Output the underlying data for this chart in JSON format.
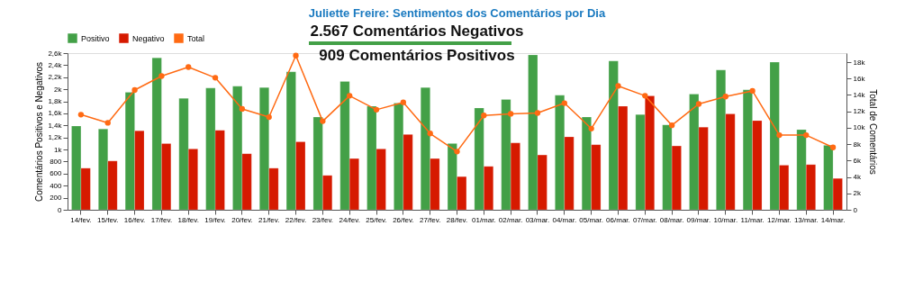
{
  "chart_data": {
    "type": "bar",
    "title": "Juliette Freire: Sentimentos dos Comentários por Dia",
    "ylabel": "Comentários Positivos e Negativos",
    "y2label": "Total de Comentários",
    "categories": [
      "14/fev.",
      "15/fev.",
      "16/fev.",
      "17/fev.",
      "18/fev.",
      "19/fev.",
      "20/fev.",
      "21/fev.",
      "22/fev.",
      "23/fev.",
      "24/fev.",
      "25/fev.",
      "26/fev.",
      "27/fev.",
      "28/fev.",
      "01/mar.",
      "02/mar.",
      "03/mar.",
      "04/mar.",
      "05/mar.",
      "06/mar.",
      "07/mar.",
      "08/mar.",
      "09/mar.",
      "10/mar.",
      "11/mar.",
      "12/mar.",
      "13/mar.",
      "14/mar."
    ],
    "series": [
      {
        "name": "Positivo",
        "color": "#43a047",
        "values": [
          1390,
          1340,
          1950,
          2520,
          1850,
          2020,
          2050,
          2030,
          2290,
          1540,
          2130,
          1720,
          1770,
          2030,
          1100,
          1690,
          1830,
          2570,
          1900,
          1540,
          2470,
          1580,
          1410,
          1920,
          2320,
          1990,
          2450,
          1330,
          1070
        ]
      },
      {
        "name": "Negativo",
        "color": "#d61a00",
        "values": [
          690,
          810,
          1310,
          1100,
          1010,
          1320,
          930,
          690,
          1130,
          570,
          850,
          1010,
          1250,
          850,
          550,
          720,
          1110,
          910,
          1210,
          1080,
          1720,
          1890,
          1060,
          1370,
          1590,
          1480,
          740,
          750,
          520
        ]
      },
      {
        "name": "Total",
        "type": "line",
        "axis": "y2",
        "color": "#ff6a13",
        "values": [
          11600,
          10600,
          14600,
          16300,
          17400,
          16100,
          12300,
          11300,
          18800,
          10800,
          13900,
          12200,
          13100,
          9300,
          7100,
          11500,
          11700,
          11800,
          13000,
          9900,
          15100,
          13900,
          10300,
          12900,
          13800,
          14500,
          9100,
          9100,
          7600
        ]
      }
    ],
    "ylim": [
      0,
      2600
    ],
    "yticks": [
      0,
      200,
      400,
      600,
      800,
      {
        "value": 1000,
        "label": "1k"
      },
      {
        "value": 1200,
        "label": "1,2k"
      },
      {
        "value": 1400,
        "label": "1,4k"
      },
      {
        "value": 1600,
        "label": "1,6k"
      },
      {
        "value": 1800,
        "label": "1,8k"
      },
      {
        "value": 2000,
        "label": "2k"
      },
      {
        "value": 2200,
        "label": "2,2k"
      },
      {
        "value": 2400,
        "label": "2,4k"
      },
      {
        "value": 2600,
        "label": "2,6k"
      }
    ],
    "y2lim": [
      0,
      19100
    ],
    "y2ticks": [
      0,
      {
        "value": 2000,
        "label": "2k"
      },
      {
        "value": 4000,
        "label": "4k"
      },
      {
        "value": 6000,
        "label": "6k"
      },
      {
        "value": 8000,
        "label": "8k"
      },
      {
        "value": 10000,
        "label": "10k"
      },
      {
        "value": 12000,
        "label": "12k"
      },
      {
        "value": 14000,
        "label": "14k"
      },
      {
        "value": 16000,
        "label": "16k"
      },
      {
        "value": 18000,
        "label": "18k"
      }
    ],
    "annotations": [
      "2.567 Comentários Negativos",
      "909 Comentários Positivos"
    ],
    "legend": "top left",
    "marker": "circle",
    "line_style": "solid",
    "grid": false
  }
}
